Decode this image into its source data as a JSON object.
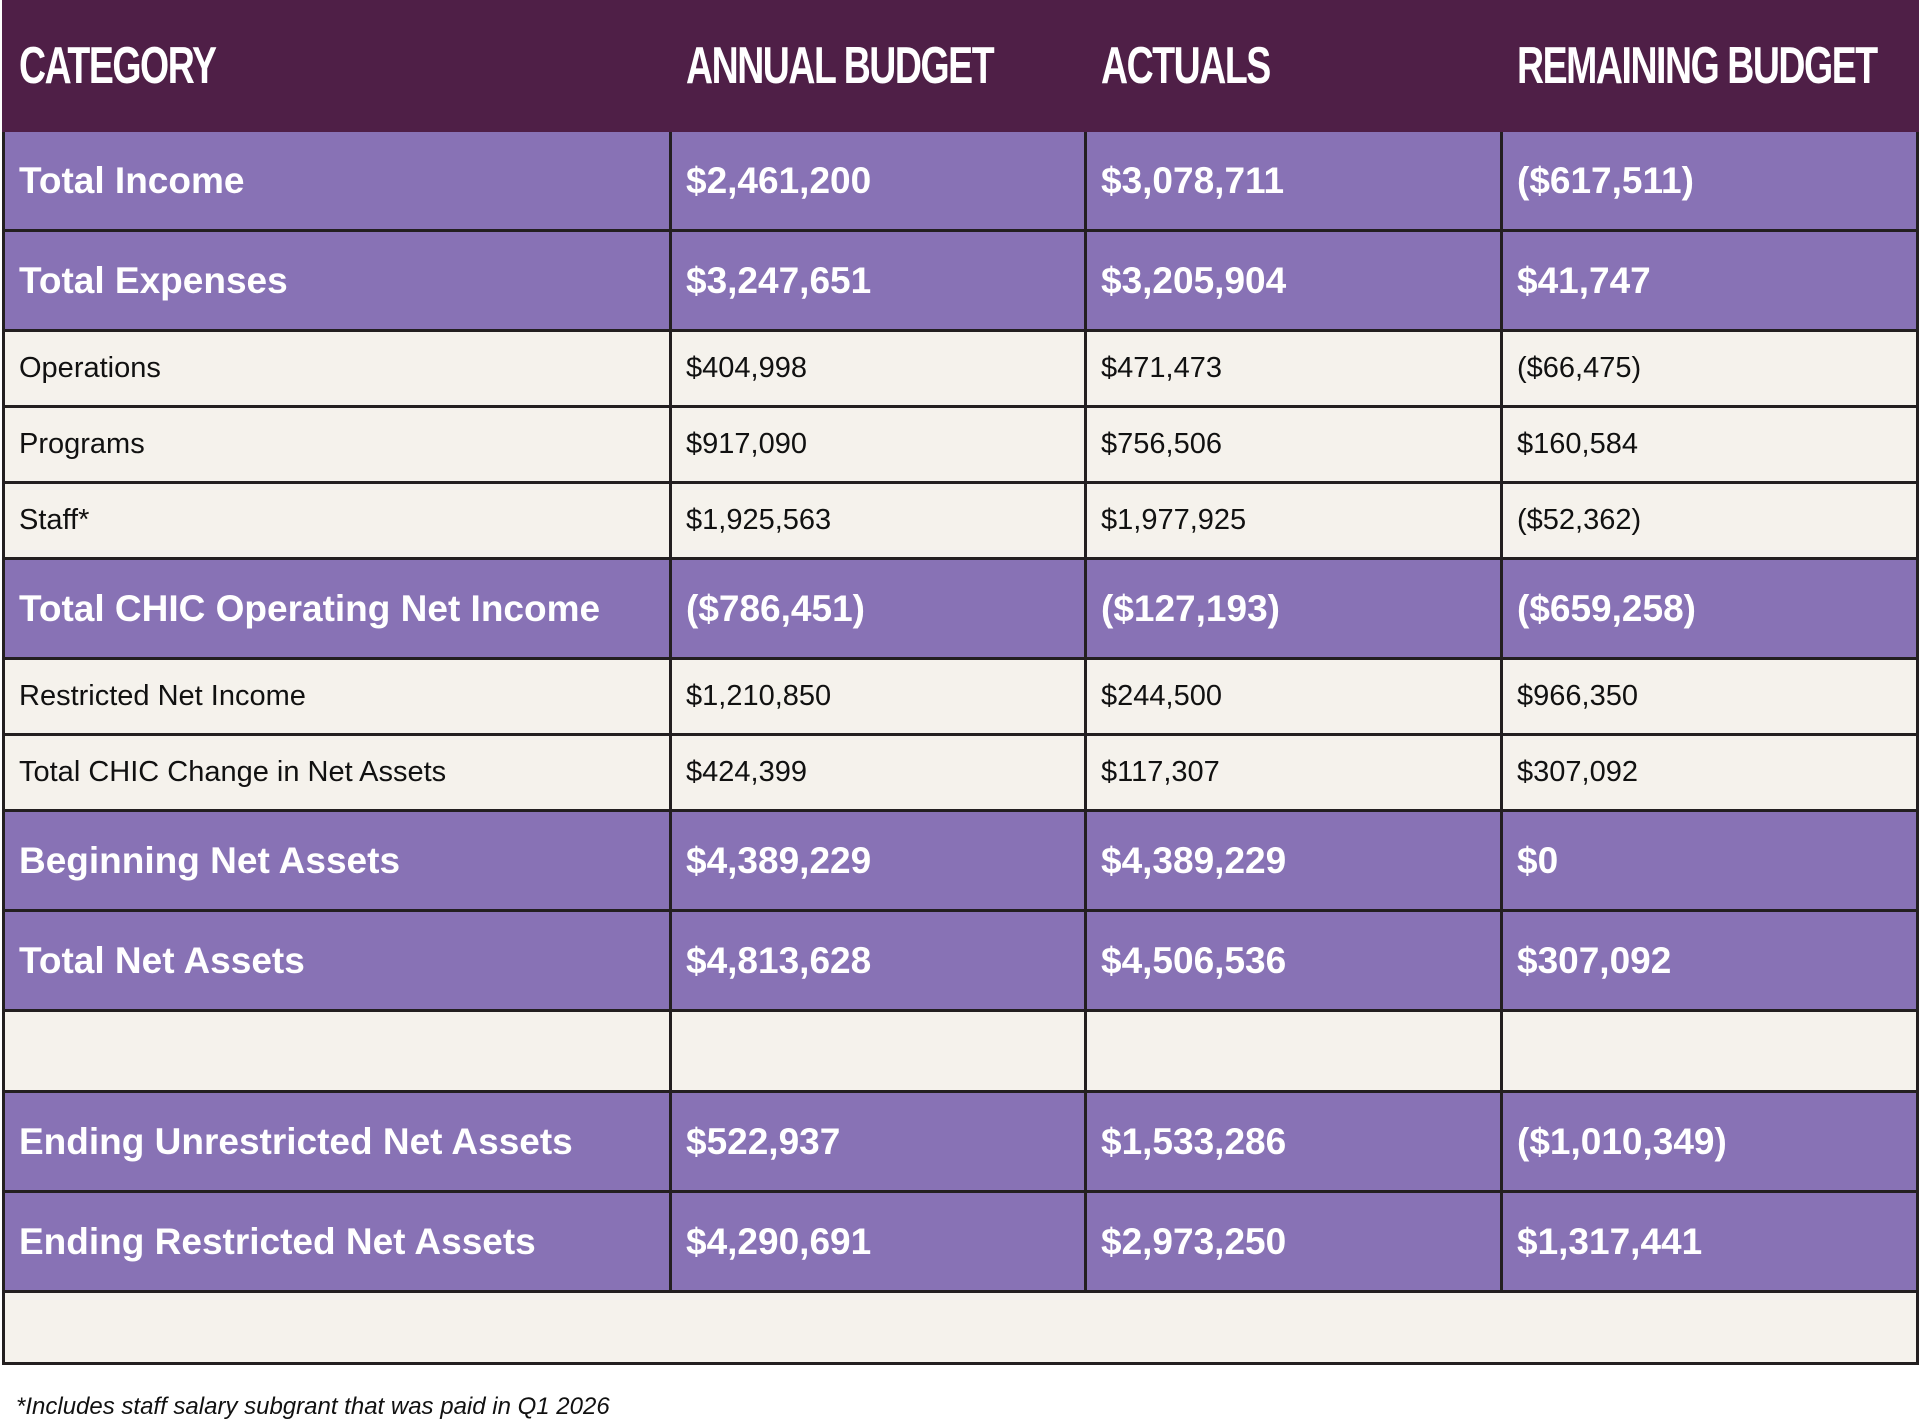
{
  "table": {
    "header": [
      "CATEGORY",
      "ANNUAL BUDGET",
      "ACTUALS",
      "REMAINING BUDGET"
    ],
    "rows": [
      [
        "Total Income",
        "$2,461,200",
        "$3,078,711",
        "($617,511)"
      ],
      [
        "Total Expenses",
        "$3,247,651",
        "$3,205,904",
        "$41,747"
      ],
      [
        "Operations",
        "$404,998",
        "$471,473",
        "($66,475)"
      ],
      [
        "Programs",
        "$917,090",
        "$756,506",
        "$160,584"
      ],
      [
        "Staff*",
        "$1,925,563",
        "$1,977,925",
        "($52,362)"
      ],
      [
        "Total CHIC Operating Net Income",
        "($786,451)",
        "($127,193)",
        "($659,258)"
      ],
      [
        "Restricted Net Income",
        "$1,210,850",
        "$244,500",
        "$966,350"
      ],
      [
        "Total CHIC Change in Net Assets",
        "$424,399",
        "$117,307",
        "$307,092"
      ],
      [
        "Beginning Net Assets",
        "$4,389,229",
        "$4,389,229",
        "$0"
      ],
      [
        "Total Net Assets",
        "$4,813,628",
        "$4,506,536",
        "$307,092"
      ],
      [
        "Ending Unrestricted Net Assets",
        "$522,937",
        "$1,533,286",
        "($1,010,349)"
      ],
      [
        "Ending Restricted Net Assets",
        "$4,290,691",
        "$2,973,250",
        "$1,317,441"
      ]
    ]
  },
  "footnote": "*Includes staff salary subgrant that was paid in Q1 2026"
}
